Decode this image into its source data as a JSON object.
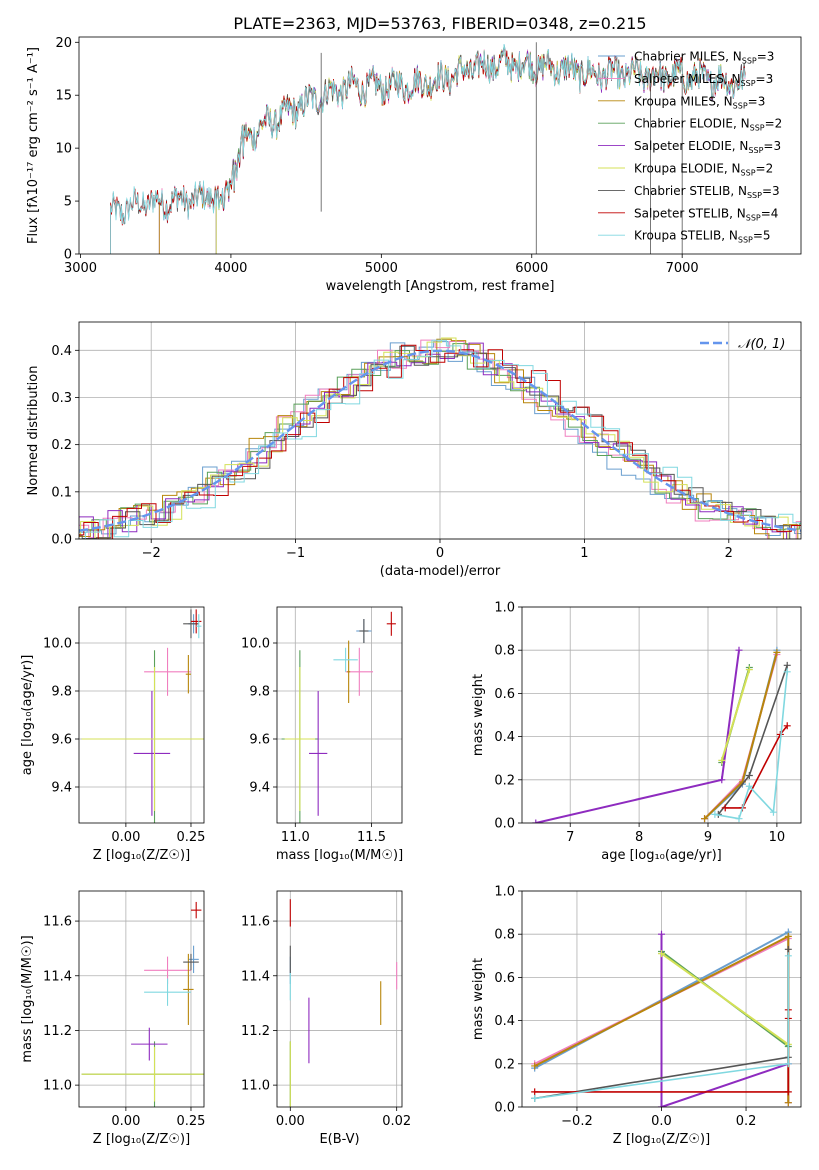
{
  "figure": {
    "title": "PLATE=2363, MJD=53763, FIBERID=0348, z=0.215"
  },
  "colors": {
    "chabrier_miles": "#6a9fcf",
    "salpeter_miles": "#f07fbf",
    "kroupa_miles": "#b8860b",
    "chabrier_elodie": "#5aa05a",
    "salpeter_elodie": "#8e2bbf",
    "kroupa_elodie": "#d4e157",
    "chabrier_stelib": "#555555",
    "salpeter_stelib": "#c00000",
    "kroupa_stelib": "#80d8e0",
    "normal": "#6495ed"
  },
  "chart_data": [
    {
      "id": "spectrum",
      "type": "line",
      "title": "PLATE=2363, MJD=53763, FIBERID=0348, z=0.215",
      "xlabel": "wavelength [Angstrom, rest frame]",
      "ylabel": "Flux [fλ10⁻¹⁷ erg cm⁻² s⁻¹ A⁻¹]",
      "xlim": [
        2990,
        7790
      ],
      "ylim": [
        0,
        20.5
      ],
      "xticks": [
        "3000",
        "4000",
        "5000",
        "6000",
        "7000"
      ],
      "yticks": [
        "0",
        "5",
        "10",
        "15",
        "20"
      ],
      "legend_position": "top-right",
      "continuum_x": [
        3200,
        3400,
        3600,
        3800,
        3950,
        4050,
        4200,
        4400,
        4600,
        4800,
        5000,
        5200,
        5400,
        5600,
        5800,
        6000,
        6200,
        6400,
        6600,
        6800,
        7000,
        7200,
        7400
      ],
      "continuum_y": [
        3.8,
        4.8,
        5.0,
        5.2,
        6.2,
        10.5,
        12.0,
        13.5,
        15.0,
        15.8,
        15.8,
        16.0,
        16.5,
        17.5,
        18.0,
        17.8,
        17.5,
        17.0,
        17.0,
        16.8,
        16.8,
        16.5,
        16.2
      ],
      "series": [
        {
          "name": "Chabrier MILES, N_SSP=3",
          "label": "Chabrier MILES, N",
          "nssp": "=3",
          "color_key": "chabrier_miles",
          "start": 3520
        },
        {
          "name": "Salpeter MILES, N_SSP=3",
          "label": "Salpeter MILES, N",
          "nssp": "=3",
          "color_key": "salpeter_miles",
          "start": 3520
        },
        {
          "name": "Kroupa MILES, N_SSP=3",
          "label": "Kroupa MILES, N",
          "nssp": "=3",
          "color_key": "kroupa_miles",
          "start": 3520
        },
        {
          "name": "Chabrier ELODIE, N_SSP=2",
          "label": "Chabrier ELODIE, N",
          "nssp": "=2",
          "color_key": "chabrier_elodie",
          "start": 3900
        },
        {
          "name": "Salpeter ELODIE, N_SSP=3",
          "label": "Salpeter ELODIE, N",
          "nssp": "=3",
          "color_key": "salpeter_elodie",
          "start": 3900
        },
        {
          "name": "Kroupa ELODIE, N_SSP=2",
          "label": "Kroupa ELODIE, N",
          "nssp": "=2",
          "color_key": "kroupa_elodie",
          "start": 3900
        },
        {
          "name": "Chabrier STELIB, N_SSP=3",
          "label": "Chabrier STELIB, N",
          "nssp": "=3",
          "color_key": "chabrier_stelib",
          "start": 3200
        },
        {
          "name": "Salpeter STELIB, N_SSP=4",
          "label": "Salpeter STELIB, N",
          "nssp": "=4",
          "color_key": "salpeter_stelib",
          "start": 3200
        },
        {
          "name": "Kroupa STELIB, N_SSP=5",
          "label": "Kroupa STELIB, N",
          "nssp": "=5",
          "color_key": "kroupa_stelib",
          "start": 3200
        }
      ]
    },
    {
      "id": "residuals",
      "type": "line",
      "xlabel": "(data-model)/error",
      "ylabel": "Normed distribution",
      "xlim": [
        -2.5,
        2.5
      ],
      "ylim": [
        0,
        0.46
      ],
      "xticks": [
        "−2",
        "−1",
        "0",
        "1",
        "2"
      ],
      "yticks": [
        "0.0",
        "0.1",
        "0.2",
        "0.3",
        "0.4"
      ],
      "legend": "𝒩(0, 1)",
      "legend_position": "top-right",
      "bin_width": 0.1
    },
    {
      "id": "Z-age",
      "type": "scatter",
      "xlabel": "Z [log₁₀(Z/Z☉)]",
      "ylabel": "age  [log₁₀(age/yr)]",
      "xlim": [
        -0.18,
        0.3
      ],
      "ylim": [
        9.25,
        10.15
      ],
      "xticks": [
        "0.00",
        "0.25"
      ],
      "yticks": [
        "9.4",
        "9.6",
        "9.8",
        "10.0"
      ],
      "points": [
        {
          "color_key": "chabrier_miles",
          "x": 0.26,
          "xerr": 0.02,
          "y": 10.08,
          "yerr": 0.04
        },
        {
          "color_key": "salpeter_miles",
          "x": 0.16,
          "xerr": 0.09,
          "y": 9.88,
          "yerr": 0.1
        },
        {
          "color_key": "kroupa_miles",
          "x": 0.24,
          "xerr": 0.01,
          "y": 9.87,
          "yerr": 0.08
        },
        {
          "color_key": "chabrier_elodie",
          "x": 0.11,
          "xerr": 0.28,
          "y": 9.6,
          "yerr": 0.37
        },
        {
          "color_key": "salpeter_elodie",
          "x": 0.1,
          "xerr": 0.07,
          "y": 9.54,
          "yerr": 0.26
        },
        {
          "color_key": "kroupa_elodie",
          "x": 0.11,
          "xerr": 0.28,
          "y": 9.6,
          "yerr": 0.3
        },
        {
          "color_key": "chabrier_stelib",
          "x": 0.25,
          "xerr": 0.03,
          "y": 10.08,
          "yerr": 0.06
        },
        {
          "color_key": "salpeter_stelib",
          "x": 0.27,
          "xerr": 0.02,
          "y": 10.09,
          "yerr": 0.05
        },
        {
          "color_key": "kroupa_stelib",
          "x": 0.28,
          "xerr": 0.01,
          "y": 10.07,
          "yerr": 0.05
        }
      ]
    },
    {
      "id": "mass-age",
      "type": "scatter",
      "xlabel": "mass [log₁₀(M/M☉)]",
      "ylabel": "",
      "xlim": [
        10.88,
        11.7
      ],
      "ylim": [
        9.25,
        10.15
      ],
      "xticks": [
        "11.0",
        "11.5"
      ],
      "yticks": [
        "9.4",
        "9.6",
        "9.8",
        "10.0"
      ],
      "points": [
        {
          "color_key": "chabrier_miles",
          "x": 11.45,
          "xerr": 0.05,
          "y": 10.05,
          "yerr": 0.05
        },
        {
          "color_key": "salpeter_miles",
          "x": 11.42,
          "xerr": 0.09,
          "y": 9.88,
          "yerr": 0.1
        },
        {
          "color_key": "kroupa_miles",
          "x": 11.35,
          "xerr": 0.01,
          "y": 9.88,
          "yerr": 0.13
        },
        {
          "color_key": "chabrier_elodie",
          "x": 11.03,
          "xerr": 0.12,
          "y": 9.6,
          "yerr": 0.37
        },
        {
          "color_key": "salpeter_elodie",
          "x": 11.15,
          "xerr": 0.06,
          "y": 9.54,
          "yerr": 0.26
        },
        {
          "color_key": "kroupa_elodie",
          "x": 11.03,
          "xerr": 0.1,
          "y": 9.6,
          "yerr": 0.3
        },
        {
          "color_key": "chabrier_stelib",
          "x": 11.45,
          "xerr": 0.03,
          "y": 10.05,
          "yerr": 0.05
        },
        {
          "color_key": "salpeter_stelib",
          "x": 11.63,
          "xerr": 0.03,
          "y": 10.08,
          "yerr": 0.05
        },
        {
          "color_key": "kroupa_stelib",
          "x": 11.33,
          "xerr": 0.08,
          "y": 9.93,
          "yerr": 0.05
        }
      ]
    },
    {
      "id": "age-weight",
      "type": "line",
      "xlabel": "age  [log₁₀(age/yr)]",
      "ylabel": "mass weight",
      "xlim": [
        6.3,
        10.35
      ],
      "ylim": [
        0,
        1.0
      ],
      "xticks": [
        "7",
        "8",
        "9",
        "10"
      ],
      "yticks": [
        "0.0",
        "0.2",
        "0.4",
        "0.6",
        "0.8",
        "1.0"
      ],
      "series": [
        {
          "color_key": "chabrier_miles",
          "x": [
            8.95,
            9.5,
            10.0
          ],
          "y": [
            0.02,
            0.18,
            0.8
          ]
        },
        {
          "color_key": "salpeter_miles",
          "x": [
            8.95,
            9.5,
            10.0
          ],
          "y": [
            0.02,
            0.2,
            0.78
          ]
        },
        {
          "color_key": "kroupa_miles",
          "x": [
            8.95,
            9.5,
            10.0
          ],
          "y": [
            0.02,
            0.19,
            0.79
          ]
        },
        {
          "color_key": "chabrier_elodie",
          "x": [
            9.2,
            9.6
          ],
          "y": [
            0.28,
            0.72
          ]
        },
        {
          "color_key": "salpeter_elodie",
          "x": [
            6.5,
            9.2,
            9.45
          ],
          "y": [
            0.0,
            0.2,
            0.8
          ]
        },
        {
          "color_key": "kroupa_elodie",
          "x": [
            9.2,
            9.6
          ],
          "y": [
            0.29,
            0.71
          ]
        },
        {
          "color_key": "chabrier_stelib",
          "x": [
            9.15,
            9.6,
            10.15
          ],
          "y": [
            0.04,
            0.22,
            0.73
          ]
        },
        {
          "color_key": "salpeter_stelib",
          "x": [
            9.25,
            9.5,
            10.05,
            10.15
          ],
          "y": [
            0.07,
            0.07,
            0.41,
            0.45
          ]
        },
        {
          "color_key": "kroupa_stelib",
          "x": [
            9.1,
            9.45,
            9.6,
            9.95,
            10.15
          ],
          "y": [
            0.04,
            0.02,
            0.17,
            0.05,
            0.7
          ]
        }
      ]
    },
    {
      "id": "Z-mass",
      "type": "scatter",
      "xlabel": "Z [log₁₀(Z/Z☉)]",
      "ylabel": "mass [log₁₀(M/M☉)]",
      "xlim": [
        -0.18,
        0.3
      ],
      "ylim": [
        10.92,
        11.71
      ],
      "xticks": [
        "0.00",
        "0.25"
      ],
      "yticks": [
        "11.0",
        "11.2",
        "11.4",
        "11.6"
      ],
      "points": [
        {
          "color_key": "chabrier_miles",
          "x": 0.26,
          "xerr": 0.02,
          "y": 11.46,
          "yerr": 0.05
        },
        {
          "color_key": "salpeter_miles",
          "x": 0.16,
          "xerr": 0.09,
          "y": 11.42,
          "yerr": 0.05
        },
        {
          "color_key": "kroupa_miles",
          "x": 0.24,
          "xerr": 0.02,
          "y": 11.35,
          "yerr": 0.13
        },
        {
          "color_key": "chabrier_elodie",
          "x": 0.11,
          "xerr": 0.28,
          "y": 11.04,
          "yerr": 0.12
        },
        {
          "color_key": "salpeter_elodie",
          "x": 0.09,
          "xerr": 0.07,
          "y": 11.15,
          "yerr": 0.06
        },
        {
          "color_key": "kroupa_elodie",
          "x": 0.11,
          "xerr": 0.28,
          "y": 11.04,
          "yerr": 0.1
        },
        {
          "color_key": "chabrier_stelib",
          "x": 0.25,
          "xerr": 0.03,
          "y": 11.45,
          "yerr": 0.03
        },
        {
          "color_key": "salpeter_stelib",
          "x": 0.27,
          "xerr": 0.02,
          "y": 11.64,
          "yerr": 0.03
        },
        {
          "color_key": "kroupa_stelib",
          "x": 0.16,
          "xerr": 0.09,
          "y": 11.34,
          "yerr": 0.05
        }
      ]
    },
    {
      "id": "ebv-mass",
      "type": "scatter",
      "xlabel": "E(B-V)",
      "ylabel": "",
      "xlim": [
        -0.0025,
        0.021
      ],
      "ylim": [
        10.92,
        11.71
      ],
      "xticks": [
        "0.00",
        "0.02"
      ],
      "yticks": [
        "11.0",
        "11.2",
        "11.4",
        "11.6"
      ],
      "points": [
        {
          "color_key": "chabrier_miles",
          "x": 0.0,
          "xerr": 0,
          "y": 11.42,
          "yerr": 0.05
        },
        {
          "color_key": "salpeter_miles",
          "x": 0.02,
          "xerr": 0,
          "y": 11.4,
          "yerr": 0.05
        },
        {
          "color_key": "kroupa_miles",
          "x": 0.017,
          "xerr": 0,
          "y": 11.3,
          "yerr": 0.08
        },
        {
          "color_key": "chabrier_elodie",
          "x": 0.0,
          "xerr": 0,
          "y": 11.04,
          "yerr": 0.12
        },
        {
          "color_key": "salpeter_elodie",
          "x": 0.0035,
          "xerr": 0,
          "y": 11.2,
          "yerr": 0.12
        },
        {
          "color_key": "kroupa_elodie",
          "x": 0.0,
          "xerr": 0,
          "y": 11.04,
          "yerr": 0.12
        },
        {
          "color_key": "chabrier_stelib",
          "x": 0.0,
          "xerr": 0,
          "y": 11.46,
          "yerr": 0.05
        },
        {
          "color_key": "salpeter_stelib",
          "x": 0.0,
          "xerr": 0,
          "y": 11.63,
          "yerr": 0.05
        },
        {
          "color_key": "kroupa_stelib",
          "x": 0.0,
          "xerr": 0,
          "y": 11.36,
          "yerr": 0.05
        }
      ]
    },
    {
      "id": "Z-weight",
      "type": "line",
      "xlabel": "Z [log₁₀(Z/Z☉)]",
      "ylabel": "mass weight",
      "xlim": [
        -0.33,
        0.33
      ],
      "ylim": [
        0,
        1.0
      ],
      "xticks": [
        "−0.2",
        "0.0",
        "0.2"
      ],
      "yticks": [
        "0.0",
        "0.2",
        "0.4",
        "0.6",
        "0.8",
        "1.0"
      ],
      "series": [
        {
          "color_key": "chabrier_miles",
          "x": [
            -0.3,
            0.3,
            0.3
          ],
          "y": [
            0.18,
            0.81,
            0.02
          ]
        },
        {
          "color_key": "salpeter_miles",
          "x": [
            -0.3,
            0.3,
            0.3
          ],
          "y": [
            0.2,
            0.78,
            0.02
          ]
        },
        {
          "color_key": "kroupa_miles",
          "x": [
            -0.3,
            0.3,
            0.3
          ],
          "y": [
            0.19,
            0.79,
            0.02
          ]
        },
        {
          "color_key": "chabrier_elodie",
          "x": [
            0.0,
            0.3
          ],
          "y": [
            0.72,
            0.28
          ]
        },
        {
          "color_key": "salpeter_elodie",
          "x": [
            0.0,
            0.0,
            0.3
          ],
          "y": [
            0.8,
            0.0,
            0.2
          ]
        },
        {
          "color_key": "kroupa_elodie",
          "x": [
            0.0,
            0.3
          ],
          "y": [
            0.71,
            0.29
          ]
        },
        {
          "color_key": "chabrier_stelib",
          "x": [
            -0.3,
            0.3,
            0.3
          ],
          "y": [
            0.04,
            0.23,
            0.73
          ]
        },
        {
          "color_key": "salpeter_stelib",
          "x": [
            -0.3,
            0.3,
            0.3,
            0.3
          ],
          "y": [
            0.07,
            0.07,
            0.41,
            0.45
          ]
        },
        {
          "color_key": "kroupa_stelib",
          "x": [
            -0.3,
            0.3,
            0.3
          ],
          "y": [
            0.04,
            0.2,
            0.7
          ]
        }
      ]
    }
  ]
}
